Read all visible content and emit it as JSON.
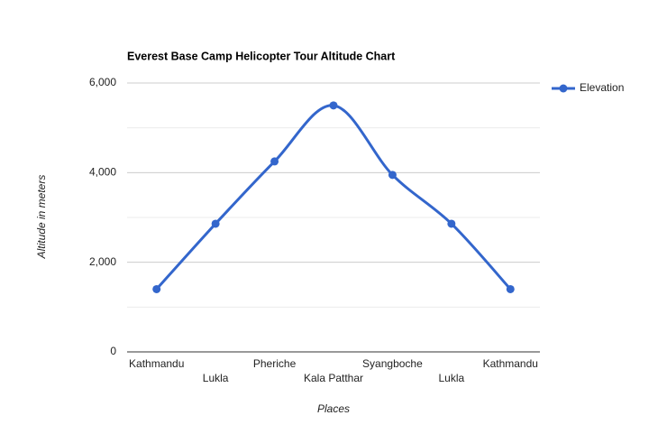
{
  "chart_data": {
    "type": "line",
    "title": "Everest Base Camp Helicopter Tour Altitude Chart",
    "x_label": "Places",
    "y_label": "Altitude in meters",
    "categories": [
      "Kathmandu",
      "Lukla",
      "Pheriche",
      "Kala Patthar",
      "Syangboche",
      "Lukla",
      "Kathmandu"
    ],
    "series": [
      {
        "name": "Elevation",
        "color": "#3366cc",
        "values": [
          1400,
          2860,
          4250,
          5500,
          3950,
          2860,
          1400
        ]
      }
    ],
    "ylim": [
      0,
      6000
    ],
    "yticks": [
      0,
      {
        "value": 2000,
        "label": "2,000"
      },
      {
        "value": 4000,
        "label": "4,000"
      },
      {
        "value": 6000,
        "label": "6,000"
      }
    ],
    "minor_yticks": [
      1000,
      3000,
      5000
    ],
    "grid": true,
    "smooth": true,
    "legend": "right"
  }
}
